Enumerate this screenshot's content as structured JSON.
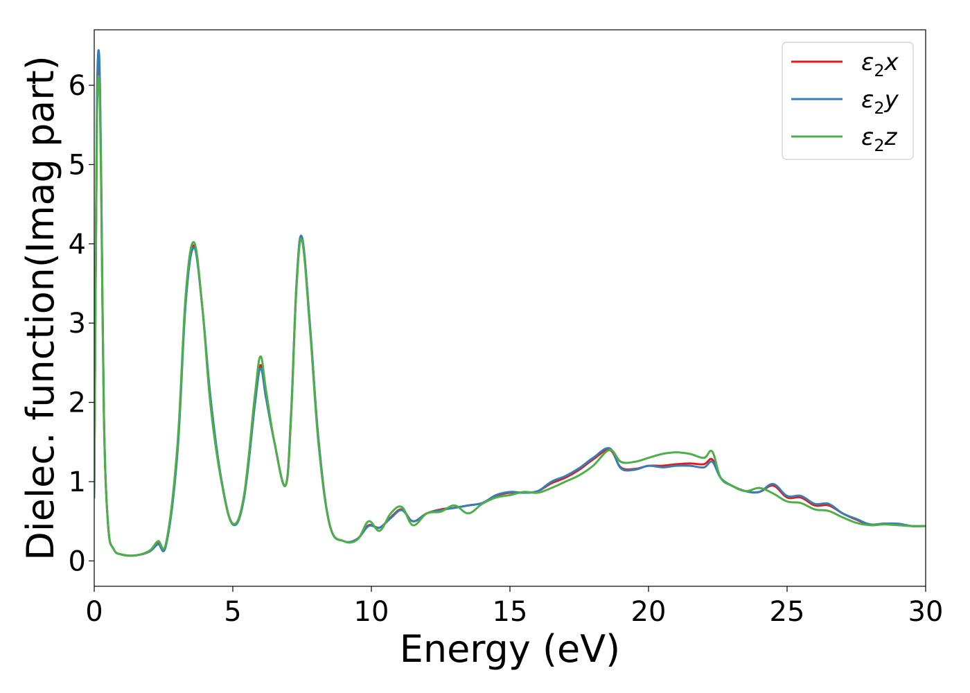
{
  "chart_data": {
    "type": "line",
    "xlabel": "Energy (eV)",
    "ylabel": "Dielec. function(Imag part)",
    "xlim": [
      0,
      30
    ],
    "ylim": [
      -0.32,
      6.7
    ],
    "xticks": [
      0,
      5,
      10,
      15,
      20,
      25,
      30
    ],
    "yticks": [
      0,
      1,
      2,
      3,
      4,
      5,
      6
    ],
    "grid": false,
    "legend_position": "top-right",
    "series": [
      {
        "name": "ε₂x",
        "legend_base": "ε",
        "legend_sub": "2",
        "legend_suffix": "x",
        "color": "#e41a1c",
        "x": [
          0,
          0.05,
          0.1,
          0.18,
          0.25,
          0.35,
          0.5,
          0.7,
          1.0,
          1.5,
          2.0,
          2.3,
          2.6,
          3.0,
          3.3,
          3.6,
          3.9,
          4.2,
          4.6,
          5.0,
          5.4,
          5.8,
          6.0,
          6.2,
          6.5,
          6.9,
          7.1,
          7.3,
          7.5,
          7.8,
          8.1,
          8.5,
          9.0,
          9.5,
          9.9,
          10.3,
          10.7,
          11.1,
          11.5,
          12.0,
          12.5,
          13.0,
          13.5,
          14.0,
          14.5,
          15.0,
          15.5,
          16.0,
          16.5,
          17.0,
          17.5,
          18.0,
          18.6,
          19.0,
          19.5,
          20.0,
          20.5,
          21.0,
          21.5,
          22.0,
          22.3,
          22.6,
          23.0,
          23.5,
          24.0,
          24.5,
          25.0,
          25.5,
          26.0,
          26.5,
          27.0,
          27.5,
          28.0,
          28.5,
          29.0,
          29.5,
          30.0
        ],
        "y": [
          0.8,
          3.5,
          5.7,
          6.25,
          4.8,
          1.8,
          0.45,
          0.15,
          0.08,
          0.07,
          0.12,
          0.22,
          0.22,
          1.4,
          3.3,
          3.98,
          3.2,
          2.0,
          1.0,
          0.47,
          0.8,
          2.0,
          2.47,
          2.1,
          1.5,
          0.95,
          1.8,
          3.5,
          4.07,
          2.9,
          1.5,
          0.45,
          0.25,
          0.28,
          0.45,
          0.42,
          0.55,
          0.65,
          0.5,
          0.6,
          0.65,
          0.67,
          0.7,
          0.73,
          0.82,
          0.86,
          0.86,
          0.88,
          0.98,
          1.05,
          1.15,
          1.28,
          1.4,
          1.18,
          1.16,
          1.2,
          1.2,
          1.22,
          1.23,
          1.22,
          1.28,
          1.05,
          0.95,
          0.88,
          0.87,
          0.95,
          0.8,
          0.8,
          0.7,
          0.7,
          0.6,
          0.52,
          0.46,
          0.47,
          0.46,
          0.44,
          0.44
        ]
      },
      {
        "name": "ε₂y",
        "legend_base": "ε",
        "legend_sub": "2",
        "legend_suffix": "y",
        "color": "#377eb8",
        "x": [
          0,
          0.05,
          0.1,
          0.18,
          0.25,
          0.35,
          0.5,
          0.7,
          1.0,
          1.5,
          2.0,
          2.3,
          2.6,
          3.0,
          3.3,
          3.6,
          3.9,
          4.2,
          4.6,
          5.0,
          5.4,
          5.8,
          6.0,
          6.2,
          6.5,
          6.9,
          7.1,
          7.3,
          7.5,
          7.8,
          8.1,
          8.5,
          9.0,
          9.5,
          9.9,
          10.3,
          10.7,
          11.1,
          11.5,
          12.0,
          12.5,
          13.0,
          13.5,
          14.0,
          14.5,
          15.0,
          15.5,
          16.0,
          16.5,
          17.0,
          17.5,
          18.0,
          18.6,
          19.0,
          19.5,
          20.0,
          20.5,
          21.0,
          21.5,
          22.0,
          22.3,
          22.6,
          23.0,
          23.5,
          24.0,
          24.5,
          25.0,
          25.5,
          26.0,
          26.5,
          27.0,
          27.5,
          28.0,
          28.5,
          29.0,
          29.5,
          30.0
        ],
        "y": [
          0.8,
          3.6,
          5.9,
          6.37,
          4.9,
          1.85,
          0.45,
          0.15,
          0.08,
          0.07,
          0.12,
          0.21,
          0.21,
          1.35,
          3.25,
          3.95,
          3.2,
          2.05,
          1.0,
          0.46,
          0.78,
          1.98,
          2.43,
          2.05,
          1.5,
          0.95,
          1.85,
          3.5,
          4.08,
          2.9,
          1.5,
          0.45,
          0.25,
          0.28,
          0.44,
          0.42,
          0.54,
          0.64,
          0.5,
          0.6,
          0.64,
          0.67,
          0.7,
          0.73,
          0.83,
          0.87,
          0.86,
          0.88,
          1.0,
          1.07,
          1.17,
          1.3,
          1.42,
          1.17,
          1.15,
          1.2,
          1.18,
          1.2,
          1.2,
          1.18,
          1.25,
          1.05,
          0.95,
          0.88,
          0.87,
          0.97,
          0.82,
          0.82,
          0.72,
          0.72,
          0.6,
          0.53,
          0.46,
          0.47,
          0.47,
          0.44,
          0.44
        ]
      },
      {
        "name": "ε₂z",
        "legend_base": "ε",
        "legend_sub": "2",
        "legend_suffix": "z",
        "color": "#4daf4a",
        "x": [
          0,
          0.05,
          0.1,
          0.18,
          0.25,
          0.35,
          0.5,
          0.7,
          1.0,
          1.5,
          2.0,
          2.3,
          2.6,
          3.0,
          3.3,
          3.6,
          3.9,
          4.2,
          4.6,
          5.0,
          5.4,
          5.8,
          6.0,
          6.2,
          6.5,
          6.9,
          7.1,
          7.3,
          7.5,
          7.8,
          8.1,
          8.5,
          9.0,
          9.5,
          9.9,
          10.3,
          10.7,
          11.1,
          11.5,
          12.0,
          12.5,
          13.0,
          13.5,
          14.0,
          14.5,
          15.0,
          15.5,
          16.0,
          16.5,
          17.0,
          17.5,
          18.0,
          18.6,
          19.0,
          19.5,
          20.0,
          20.5,
          21.0,
          21.5,
          22.0,
          22.3,
          22.6,
          23.0,
          23.5,
          24.0,
          24.5,
          25.0,
          25.5,
          26.0,
          26.5,
          27.0,
          27.5,
          28.0,
          28.5,
          29.0,
          29.5,
          30.0
        ],
        "y": [
          0.8,
          3.4,
          5.6,
          6.05,
          4.7,
          1.8,
          0.45,
          0.15,
          0.08,
          0.07,
          0.13,
          0.25,
          0.24,
          1.45,
          3.35,
          4.02,
          3.2,
          1.95,
          0.98,
          0.47,
          0.82,
          2.1,
          2.58,
          2.15,
          1.5,
          0.95,
          1.8,
          3.45,
          4.04,
          2.85,
          1.45,
          0.45,
          0.25,
          0.27,
          0.5,
          0.38,
          0.6,
          0.68,
          0.45,
          0.6,
          0.62,
          0.7,
          0.6,
          0.72,
          0.8,
          0.83,
          0.87,
          0.86,
          0.92,
          1.0,
          1.08,
          1.2,
          1.4,
          1.25,
          1.25,
          1.3,
          1.35,
          1.37,
          1.35,
          1.3,
          1.38,
          1.05,
          0.95,
          0.88,
          0.92,
          0.85,
          0.75,
          0.73,
          0.65,
          0.63,
          0.55,
          0.48,
          0.45,
          0.46,
          0.45,
          0.44,
          0.44
        ]
      }
    ]
  }
}
